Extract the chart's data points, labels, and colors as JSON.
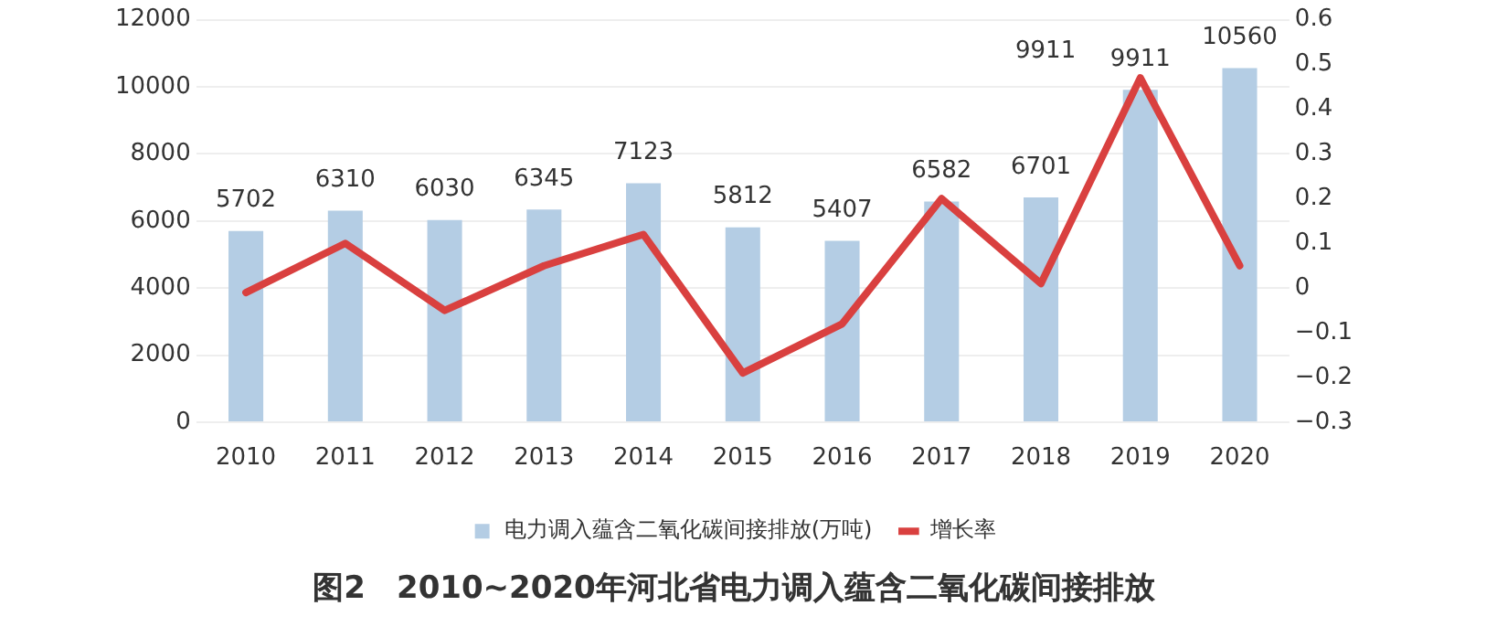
{
  "chart_data": {
    "type": "bar",
    "title": "图2　2010~2020年河北省电力调入蕴含二氧化碳间接排放",
    "categories": [
      "2010",
      "2011",
      "2012",
      "2013",
      "2014",
      "2015",
      "2016",
      "2017",
      "2018",
      "2019",
      "2020"
    ],
    "series": [
      {
        "name": "电力调入蕴含二氧化碳间接排放(万吨)",
        "color": "#b4cde4",
        "values": [
          5702,
          6310,
          6030,
          6345,
          7123,
          5812,
          5407,
          6582,
          6701,
          9911,
          10560
        ],
        "value_labels": [
          "5702",
          "6310",
          "6030",
          "6345",
          "7123",
          "5812",
          "5407",
          "6582",
          "6701",
          "9911",
          "10560"
        ]
      },
      {
        "name": "增长率",
        "type": "line",
        "axis": "y2",
        "color": "#d9403f",
        "values": [
          -0.01,
          0.1,
          -0.05,
          0.05,
          0.12,
          -0.19,
          -0.08,
          0.2,
          0.01,
          0.47,
          0.05
        ]
      }
    ],
    "annotations": [
      "9911"
    ],
    "ylim": [
      0,
      12000
    ],
    "yticks": [
      0,
      2000,
      4000,
      6000,
      8000,
      10000,
      12000
    ],
    "y2lim": [
      -0.3,
      0.6
    ],
    "y2ticks": [
      -0.3,
      -0.2,
      -0.1,
      0,
      0.1,
      0.2,
      0.3,
      0.4,
      0.5,
      0.6
    ],
    "grid": "y",
    "legend": "bottom",
    "marker": "none",
    "line_style": "solid"
  }
}
